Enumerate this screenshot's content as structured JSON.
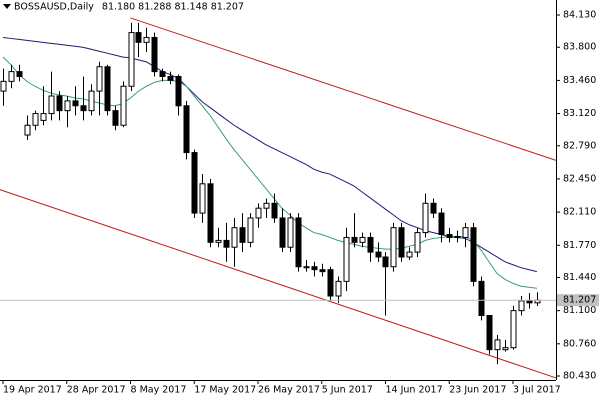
{
  "chart_data": {
    "type": "candlestick",
    "title": "BOSSAUSD,Daily",
    "quote": "81.180 81.288 81.148 81.207",
    "categories": [
      "19 Apr 2017",
      null,
      null,
      null,
      null,
      null,
      null,
      null,
      "28 Apr 2017",
      null,
      null,
      null,
      null,
      null,
      null,
      null,
      "8 May 2017",
      null,
      null,
      null,
      null,
      null,
      null,
      null,
      "17 May 2017",
      null,
      null,
      null,
      null,
      null,
      null,
      null,
      "26 May 2017",
      null,
      null,
      null,
      null,
      null,
      null,
      null,
      "5 Jun 2017",
      null,
      null,
      null,
      null,
      null,
      null,
      null,
      "14 Jun 2017",
      null,
      null,
      null,
      null,
      null,
      null,
      null,
      "23 Jun 2017",
      null,
      null,
      null,
      null,
      null,
      null,
      null,
      "3 Jul 2017",
      null,
      null,
      null
    ],
    "open": [
      83.35,
      83.45,
      83.55,
      82.9,
      83.0,
      83.05,
      83.12,
      83.3,
      83.15,
      83.25,
      83.2,
      83.15,
      83.35,
      83.6,
      83.15,
      83.0,
      83.4,
      83.95,
      83.85,
      83.9,
      83.55,
      83.5,
      83.5,
      83.2,
      82.72,
      82.1,
      82.4,
      81.8,
      81.82,
      81.75,
      81.95,
      81.8,
      82.05,
      82.15,
      82.2,
      82.05,
      81.75,
      82.05,
      81.55,
      81.55,
      81.52,
      81.52,
      81.25,
      81.4,
      81.85,
      81.8,
      81.85,
      81.7,
      81.65,
      81.55,
      81.95,
      81.65,
      81.7,
      81.9,
      82.2,
      82.1,
      81.88,
      81.85,
      81.85,
      81.95,
      81.4,
      81.05,
      80.7,
      80.7,
      80.72,
      81.1,
      81.2,
      81.18
    ],
    "high": [
      83.58,
      83.62,
      83.62,
      83.1,
      83.15,
      83.4,
      83.55,
      83.35,
      83.3,
      83.4,
      83.5,
      83.42,
      83.65,
      83.62,
      83.2,
      83.45,
      84.05,
      84.05,
      84.0,
      83.95,
      83.58,
      83.55,
      83.52,
      83.25,
      82.75,
      82.5,
      82.45,
      81.95,
      82.0,
      82.05,
      82.1,
      82.1,
      82.2,
      82.25,
      82.3,
      82.15,
      82.1,
      82.1,
      81.62,
      81.6,
      81.58,
      81.55,
      81.45,
      81.95,
      82.1,
      81.9,
      81.9,
      81.8,
      81.7,
      82.0,
      82.0,
      81.75,
      81.95,
      82.3,
      82.25,
      82.15,
      81.95,
      81.92,
      82.0,
      82.0,
      81.45,
      81.05,
      80.85,
      80.8,
      81.15,
      81.25,
      81.28,
      81.288
    ],
    "low": [
      83.2,
      83.38,
      83.45,
      82.85,
      82.95,
      83.0,
      83.05,
      83.05,
      82.98,
      83.1,
      83.05,
      83.1,
      83.1,
      83.1,
      82.95,
      82.98,
      83.35,
      83.7,
      83.75,
      83.5,
      83.45,
      83.42,
      83.1,
      82.65,
      82.05,
      82.0,
      81.75,
      81.75,
      81.6,
      81.55,
      81.7,
      81.75,
      81.95,
      82.05,
      82.0,
      81.7,
      81.7,
      81.5,
      81.5,
      81.45,
      81.45,
      81.2,
      81.18,
      81.3,
      81.75,
      81.75,
      81.6,
      81.6,
      81.05,
      81.5,
      81.6,
      81.62,
      81.65,
      81.85,
      82.05,
      81.8,
      81.8,
      81.8,
      81.75,
      81.35,
      81.0,
      80.65,
      80.55,
      80.68,
      80.7,
      81.05,
      81.12,
      81.148
    ],
    "close": [
      83.45,
      83.55,
      83.5,
      83.0,
      83.12,
      83.12,
      83.3,
      83.15,
      83.25,
      83.2,
      83.15,
      83.35,
      83.6,
      83.15,
      83.0,
      83.4,
      83.95,
      83.85,
      83.9,
      83.55,
      83.5,
      83.46,
      83.2,
      82.72,
      82.1,
      82.4,
      81.8,
      81.82,
      81.75,
      81.95,
      81.8,
      82.05,
      82.15,
      82.2,
      82.05,
      81.75,
      82.05,
      81.55,
      81.55,
      81.52,
      81.5,
      81.25,
      81.4,
      81.85,
      81.8,
      81.85,
      81.7,
      81.65,
      81.55,
      81.95,
      81.65,
      81.7,
      81.9,
      82.2,
      82.1,
      81.88,
      81.85,
      81.86,
      81.95,
      81.4,
      81.05,
      80.7,
      80.8,
      80.72,
      81.1,
      81.2,
      81.18,
      81.207
    ],
    "up_color": "#ffffff",
    "down_color": "#000000",
    "series": [
      {
        "color": "#1c1c78",
        "values": [
          83.9,
          83.89,
          83.88,
          83.87,
          83.86,
          83.85,
          83.84,
          83.83,
          83.82,
          83.81,
          83.8,
          83.78,
          83.76,
          83.74,
          83.72,
          83.7,
          83.69,
          83.67,
          83.65,
          83.6,
          83.55,
          83.52,
          83.48,
          83.4,
          83.32,
          83.24,
          83.18,
          83.12,
          83.06,
          83.0,
          82.95,
          82.9,
          82.85,
          82.8,
          82.76,
          82.72,
          82.68,
          82.64,
          82.6,
          82.55,
          82.52,
          82.5,
          82.46,
          82.42,
          82.38,
          82.32,
          82.26,
          82.2,
          82.14,
          82.08,
          82.02,
          81.98,
          81.95,
          81.92,
          81.9,
          81.88,
          81.86,
          81.85,
          81.84,
          81.8,
          81.75,
          81.7,
          81.65,
          81.6,
          81.57,
          81.54,
          81.52,
          81.5
        ]
      },
      {
        "color": "#3c9c70",
        "values": [
          83.7,
          83.62,
          83.52,
          83.45,
          83.4,
          83.36,
          83.33,
          83.31,
          83.3,
          83.28,
          83.27,
          83.25,
          83.23,
          83.21,
          83.2,
          83.22,
          83.28,
          83.35,
          83.4,
          83.44,
          83.46,
          83.46,
          83.45,
          83.4,
          83.3,
          83.2,
          83.1,
          82.98,
          82.86,
          82.75,
          82.65,
          82.55,
          82.45,
          82.35,
          82.25,
          82.15,
          82.08,
          82.0,
          81.95,
          81.9,
          81.88,
          81.85,
          81.82,
          81.8,
          81.78,
          81.76,
          81.75,
          81.74,
          81.73,
          81.73,
          81.74,
          81.76,
          81.78,
          81.82,
          81.84,
          81.85,
          81.86,
          81.86,
          81.86,
          81.82,
          81.72,
          81.6,
          81.48,
          81.42,
          81.38,
          81.35,
          81.34,
          81.33
        ]
      }
    ],
    "trendlines": [
      {
        "color": "#c0201c",
        "x": [
          16,
          69.4
        ],
        "y": [
          84.1,
          82.64
        ]
      },
      {
        "color": "#c0201c",
        "x": [
          -0.4,
          69.4
        ],
        "y": [
          82.34,
          80.41
        ]
      }
    ],
    "xlim": [
      -0.38,
      69.4
    ],
    "ylim": [
      80.389,
      84.284
    ],
    "yticks": [
      {
        "value": 84.13,
        "label": "84.130"
      },
      {
        "value": 83.8,
        "label": "83.800"
      },
      {
        "value": 83.46,
        "label": "83.460"
      },
      {
        "value": 83.12,
        "label": "83.120"
      },
      {
        "value": 82.79,
        "label": "82.790"
      },
      {
        "value": 82.45,
        "label": "82.450"
      },
      {
        "value": 82.11,
        "label": "82.110"
      },
      {
        "value": 81.77,
        "label": "81.770"
      },
      {
        "value": 81.44,
        "label": "81.440"
      },
      {
        "value": 81.1,
        "label": "81.100"
      },
      {
        "value": 80.76,
        "label": "80.760"
      },
      {
        "value": 80.43,
        "label": "80.430"
      }
    ],
    "last_price": 81.207
  }
}
